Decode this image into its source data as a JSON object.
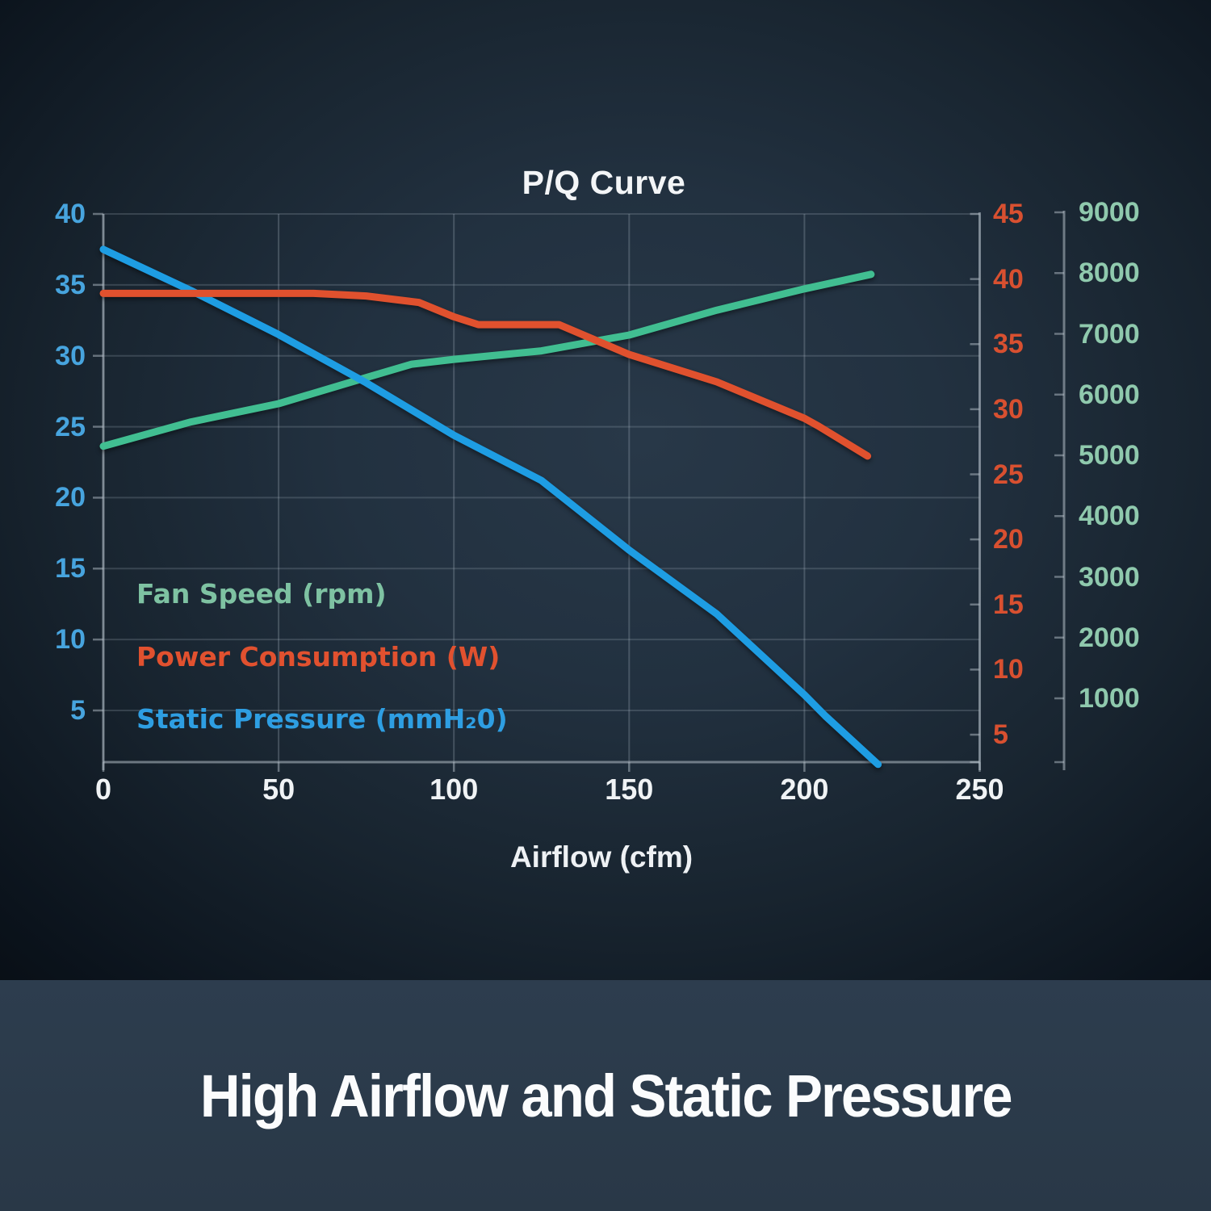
{
  "chart": {
    "title": "P/Q Curve",
    "x_axis_label": "Airflow (cfm)"
  },
  "legend": {
    "items": [
      {
        "label": "Fan Speed (rpm)",
        "color": "#7ec2a2"
      },
      {
        "label": "Power Consumption (W)",
        "color": "#e1512f"
      },
      {
        "label": "Static Pressure (mmH₂0)",
        "color": "#2e9ee2"
      }
    ]
  },
  "banner": {
    "caption": "High Airflow and Static Pressure",
    "background_top": "#2d3d4e",
    "background_bottom": "#293847"
  },
  "chart_data": {
    "type": "line",
    "title": "P/Q Curve",
    "xlabel": "Airflow (cfm)",
    "x_range": [
      0,
      250
    ],
    "x_ticks": [
      0,
      50,
      100,
      150,
      200,
      250
    ],
    "grid": true,
    "legend_position": "inside-lower-left",
    "y_axes": [
      {
        "id": "pressure",
        "name": "Static Pressure (mmH₂0)",
        "position": "left",
        "label_color": "#47a4de",
        "ticks": [
          40,
          35,
          30,
          25,
          20,
          15,
          10,
          5
        ]
      },
      {
        "id": "power",
        "name": "Power Consumption (W)",
        "position": "right-inner",
        "label_color": "#d85030",
        "ticks": [
          45,
          40,
          35,
          30,
          25,
          20,
          15,
          10,
          5
        ]
      },
      {
        "id": "rpm",
        "name": "Fan Speed (rpm)",
        "position": "right-outer",
        "label_color": "#8fc9ad",
        "ticks": [
          9000,
          8000,
          7000,
          6000,
          5000,
          4000,
          3000,
          2000,
          1000
        ]
      }
    ],
    "series": [
      {
        "name": "Fan Speed (rpm)",
        "axis": "rpm",
        "color": "#41be91",
        "points": [
          [
            0,
            5150
          ],
          [
            25,
            5550
          ],
          [
            50,
            5850
          ],
          [
            75,
            6280
          ],
          [
            88,
            6500
          ],
          [
            100,
            6580
          ],
          [
            125,
            6720
          ],
          [
            150,
            6980
          ],
          [
            175,
            7390
          ],
          [
            200,
            7740
          ],
          [
            219,
            7980
          ]
        ]
      },
      {
        "name": "Static Pressure (mmH₂0)",
        "axis": "pressure",
        "color": "#1e9de3",
        "points": [
          [
            0,
            37.5
          ],
          [
            25,
            34.6
          ],
          [
            50,
            31.5
          ],
          [
            75,
            28.1
          ],
          [
            100,
            24.4
          ],
          [
            125,
            21.2
          ],
          [
            150,
            16.3
          ],
          [
            175,
            11.8
          ],
          [
            200,
            6.1
          ],
          [
            206,
            4.6
          ],
          [
            221,
            1.2
          ]
        ]
      },
      {
        "name": "Power Consumption (W)",
        "axis": "power",
        "color": "#e0512e",
        "points": [
          [
            0,
            38.9
          ],
          [
            60,
            38.9
          ],
          [
            75,
            38.7
          ],
          [
            90,
            38.2
          ],
          [
            100,
            37.1
          ],
          [
            107,
            36.5
          ],
          [
            130,
            36.5
          ],
          [
            150,
            34.2
          ],
          [
            175,
            32.1
          ],
          [
            200,
            29.3
          ],
          [
            204,
            28.7
          ],
          [
            218,
            26.4
          ]
        ]
      }
    ]
  }
}
